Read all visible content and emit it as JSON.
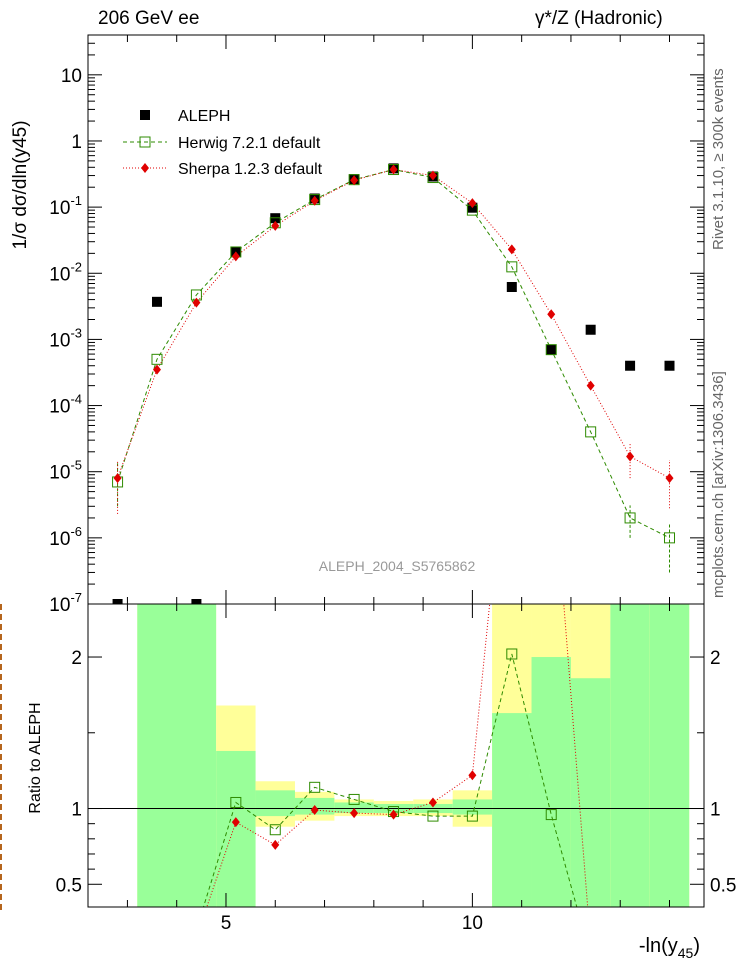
{
  "header": {
    "left": "206 GeV ee",
    "right": "γ*/Z (Hadronic)"
  },
  "side_text": {
    "top": "Rivet 3.1.10, ≥ 300k events",
    "bottom": "mcplots.cern.ch [arXiv:1306.3436]"
  },
  "watermark": "ALEPH_2004_S5765862",
  "chart_data": [
    {
      "type": "scatter",
      "panel": "main",
      "ylabel": "1/σ dσ/dln(y45)",
      "yscale": "log",
      "ylim": [
        1e-07,
        40
      ],
      "xlim": [
        2.2,
        14.7
      ],
      "yticks": [
        "10^-7",
        "10^-6",
        "10^-5",
        "10^-4",
        "10^-3",
        "10^-2",
        "10^-1",
        "1",
        "10"
      ],
      "legend": {
        "placement": "top-left"
      },
      "series": [
        {
          "name": "ALEPH",
          "color": "#000000",
          "marker": "filled-square",
          "x": [
            2.8,
            3.6,
            4.4,
            5.2,
            6.0,
            6.8,
            7.6,
            8.4,
            9.2,
            10.0,
            10.8,
            11.6,
            12.4,
            13.2,
            14.0
          ],
          "y": [
            1e-07,
            0.0037,
            1e-07,
            0.021,
            0.068,
            0.135,
            0.265,
            0.385,
            0.29,
            0.098,
            0.0062,
            0.0007,
            0.0014,
            0.0004,
            0.0004
          ]
        },
        {
          "name": "Herwig 7.2.1 default",
          "color": "#2e8b00",
          "marker": "open-square",
          "line": "dashed",
          "x": [
            2.8,
            3.6,
            4.4,
            5.2,
            6.0,
            6.8,
            7.6,
            8.4,
            9.2,
            10.0,
            10.8,
            11.6,
            12.4,
            13.2,
            14.0
          ],
          "y": [
            7e-06,
            0.0005,
            0.0047,
            0.021,
            0.058,
            0.13,
            0.26,
            0.37,
            0.28,
            0.09,
            0.0125,
            0.0007,
            4e-05,
            2e-06,
            1e-06
          ]
        },
        {
          "name": "Sherpa 1.2.3 default",
          "color": "#e00000",
          "marker": "filled-diamond",
          "line": "dotted",
          "x": [
            2.8,
            3.6,
            4.4,
            5.2,
            6.0,
            6.8,
            7.6,
            8.4,
            9.2,
            10.0,
            10.8,
            11.6,
            12.4,
            13.2,
            14.0
          ],
          "y": [
            8e-06,
            0.00035,
            0.0036,
            0.018,
            0.052,
            0.125,
            0.255,
            0.37,
            0.3,
            0.115,
            0.023,
            0.0024,
            0.0002,
            1.7e-05,
            8e-06
          ]
        }
      ]
    },
    {
      "type": "line",
      "panel": "ratio",
      "ylabel": "Ratio to ALEPH",
      "xlabel": "-ln(y45)",
      "ylim": [
        0.35,
        2.35
      ],
      "xlim": [
        2.2,
        14.7
      ],
      "xticks": [
        "5",
        "10"
      ],
      "yticks": [
        "0.5",
        "1",
        "2"
      ],
      "bands": {
        "bins": [
          3.2,
          4.8,
          5.6,
          6.4,
          7.2,
          8.0,
          8.8,
          9.6,
          10.4,
          11.2,
          12.0,
          12.8,
          13.6,
          14.4
        ],
        "green_low": [
          0.35,
          0.35,
          0.95,
          0.96,
          0.97,
          0.97,
          0.97,
          0.96,
          0.35,
          0.35,
          0.35,
          0.35,
          0.35
        ],
        "green_high": [
          2.35,
          1.38,
          1.12,
          1.07,
          1.04,
          1.03,
          1.03,
          1.06,
          1.63,
          2.0,
          1.86,
          2.35,
          2.35
        ],
        "yellow_low": [
          0.35,
          0.35,
          0.88,
          0.92,
          0.95,
          0.95,
          0.95,
          0.88,
          0.35,
          0.35,
          0.35,
          0.35,
          0.35
        ],
        "yellow_high": [
          2.35,
          1.68,
          1.18,
          1.11,
          1.06,
          1.05,
          1.06,
          1.12,
          2.35,
          2.35,
          2.35,
          2.35,
          2.35
        ]
      },
      "series": [
        {
          "name": "Herwig 7.2.1 default",
          "color": "#2e8b00",
          "marker": "open-square",
          "x": [
            4.4,
            5.2,
            6.0,
            6.8,
            7.6,
            8.4,
            9.2,
            10.0,
            10.8,
            11.6,
            12.4
          ],
          "y": [
            0.2,
            1.04,
            0.86,
            1.14,
            1.06,
            0.98,
            0.95,
            0.95,
            2.02,
            0.96,
            0.02
          ],
          "show_marker": [
            false,
            true,
            true,
            true,
            true,
            true,
            true,
            true,
            true,
            true,
            false
          ]
        },
        {
          "name": "Sherpa 1.2.3 default",
          "color": "#e00000",
          "marker": "filled-diamond",
          "x": [
            4.4,
            5.2,
            6.0,
            6.8,
            7.6,
            8.4,
            9.2,
            10.0,
            10.8,
            11.6,
            12.4
          ],
          "y": [
            0.15,
            0.91,
            0.76,
            0.99,
            0.97,
            0.96,
            1.04,
            1.22,
            3.8,
            3.4,
            0.1
          ],
          "show_marker": [
            false,
            true,
            true,
            true,
            true,
            true,
            true,
            true,
            false,
            false,
            false
          ]
        }
      ]
    }
  ]
}
